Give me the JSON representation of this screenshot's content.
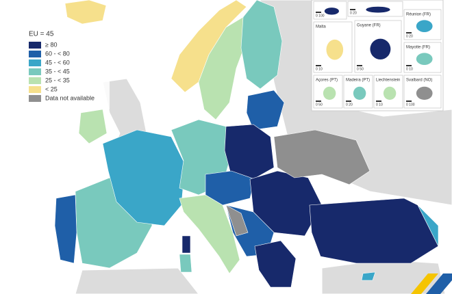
{
  "legend": {
    "title": "EU = 45",
    "items": [
      {
        "label": "≥ 80",
        "color": "#17296b"
      },
      {
        "label": "60 - < 80",
        "color": "#1f5fa8"
      },
      {
        "label": "45 - < 60",
        "color": "#3aa6c8"
      },
      {
        "label": "35 - < 45",
        "color": "#79c9bd"
      },
      {
        "label": "25 - < 35",
        "color": "#b9e2b0"
      },
      {
        "label": "< 25",
        "color": "#f6e08c"
      },
      {
        "label": "Data not available",
        "color": "#8f8f8f"
      }
    ]
  },
  "insets": [
    {
      "scale": "0 100"
    },
    {
      "scale": "0 20"
    },
    {
      "label": "Malta",
      "scale": "0 10"
    },
    {
      "label": "Guyane (FR)",
      "scale": "0 50"
    },
    {
      "label": "Réunion (FR)",
      "scale": "0 20"
    },
    {
      "label": "Mayotte (FR)",
      "scale": "0 10"
    },
    {
      "label": "Açores (PT)",
      "scale": "0 50"
    },
    {
      "label": "Madeira (PT)",
      "scale": "0 20"
    },
    {
      "label": "Liechtenstein",
      "scale": "0 10"
    },
    {
      "label": "Svalbard (NO)",
      "scale": "0 100"
    }
  ]
}
